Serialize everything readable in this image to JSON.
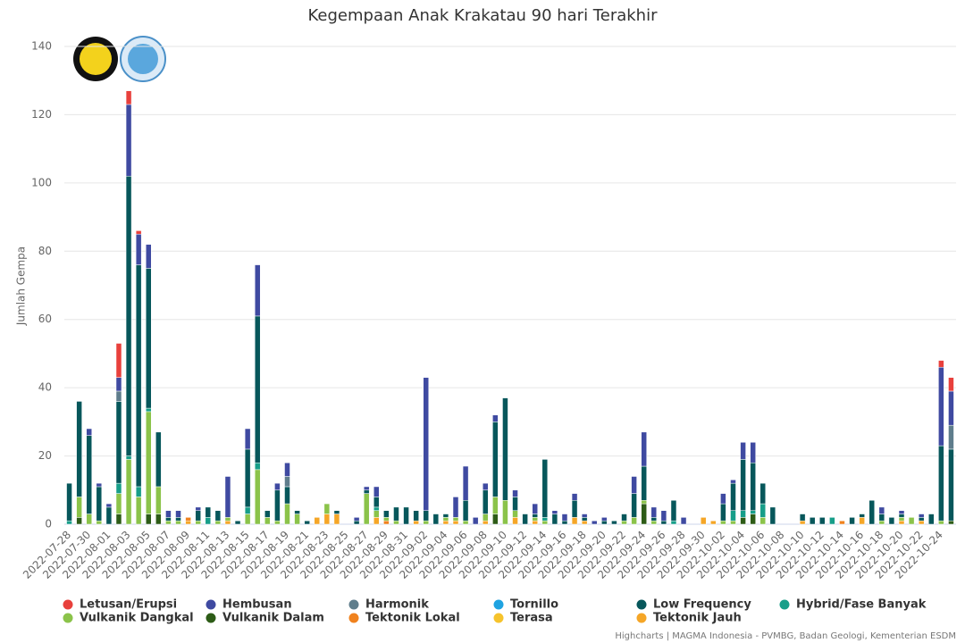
{
  "chart_data": {
    "type": "stacked-bar",
    "title": "Kegempaan Anak Krakatau 90 hari Terakhir",
    "y_label": "Jumlah Gempa",
    "credits": "Highcharts | MAGMA Indonesia - PVMBG, Badan Geologi, Kementerian ESDM",
    "ylim": [
      0,
      140
    ],
    "yticks": [
      0,
      20,
      40,
      60,
      80,
      100,
      120,
      140
    ],
    "grid": true,
    "legend": "bottom",
    "categories": [
      "2022-07-28",
      null,
      "2022-07-30",
      null,
      "2022-08-01",
      null,
      "2022-08-03",
      null,
      "2022-08-05",
      null,
      "2022-08-07",
      null,
      "2022-08-09",
      null,
      "2022-08-11",
      null,
      "2022-08-13",
      null,
      "2022-08-15",
      null,
      "2022-08-17",
      null,
      "2022-08-19",
      null,
      "2022-08-21",
      null,
      "2022-08-23",
      null,
      "2022-08-25",
      null,
      "2022-08-27",
      null,
      "2022-08-29",
      null,
      "2022-08-31",
      null,
      "2022-09-02",
      null,
      "2022-09-04",
      null,
      "2022-09-06",
      null,
      "2022-09-08",
      null,
      "2022-09-10",
      null,
      "2022-09-12",
      null,
      "2022-09-14",
      null,
      "2022-09-16",
      null,
      "2022-09-18",
      null,
      "2022-09-20",
      null,
      "2022-09-22",
      null,
      "2022-09-24",
      null,
      "2022-09-26",
      null,
      "2022-09-28",
      null,
      "2022-09-30",
      null,
      "2022-10-02",
      null,
      "2022-10-04",
      null,
      "2022-10-06",
      null,
      "2022-10-08",
      null,
      "2022-10-10",
      null,
      "2022-10-12",
      null,
      "2022-10-14",
      null,
      "2022-10-16",
      null,
      "2022-10-18",
      null,
      "2022-10-20",
      null,
      "2022-10-22",
      null,
      "2022-10-24",
      null
    ],
    "series": [
      {
        "name": "Letusan/Erupsi",
        "color": "#e8403c",
        "values": [
          0,
          0,
          0,
          0,
          0,
          10,
          4,
          1,
          0,
          0,
          0,
          0,
          0,
          0,
          0,
          0,
          0,
          0,
          0,
          0,
          0,
          0,
          0,
          0,
          0,
          0,
          0,
          0,
          0,
          0,
          0,
          0,
          0,
          0,
          0,
          0,
          0,
          0,
          0,
          0,
          0,
          0,
          0,
          0,
          0,
          0,
          0,
          0,
          0,
          0,
          0,
          0,
          0,
          0,
          0,
          0,
          0,
          0,
          0,
          0,
          0,
          0,
          0,
          0,
          0,
          0,
          0,
          0,
          0,
          0,
          0,
          0,
          0,
          0,
          0,
          0,
          0,
          0,
          0,
          0,
          0,
          0,
          0,
          0,
          0,
          0,
          0,
          0,
          2,
          4
        ]
      },
      {
        "name": "Hembusan",
        "color": "#3f4aa1",
        "values": [
          0,
          0,
          2,
          1,
          1,
          4,
          21,
          9,
          7,
          0,
          2,
          2,
          0,
          1,
          0,
          0,
          12,
          0,
          6,
          15,
          0,
          2,
          4,
          0,
          0,
          0,
          0,
          0,
          0,
          1,
          1,
          3,
          0,
          0,
          0,
          0,
          39,
          0,
          0,
          6,
          10,
          2,
          2,
          2,
          0,
          2,
          0,
          3,
          0,
          1,
          2,
          2,
          1,
          1,
          1,
          0,
          0,
          5,
          10,
          3,
          3,
          0,
          2,
          0,
          0,
          0,
          3,
          1,
          5,
          6,
          0,
          0,
          0,
          0,
          0,
          0,
          0,
          0,
          0,
          0,
          0,
          0,
          2,
          0,
          1,
          0,
          1,
          0,
          23,
          10
        ]
      },
      {
        "name": "Harmonik",
        "color": "#5f7d8c",
        "values": [
          0,
          0,
          0,
          0,
          0,
          3,
          0,
          0,
          0,
          0,
          0,
          0,
          0,
          0,
          0,
          0,
          0,
          0,
          0,
          0,
          0,
          0,
          3,
          0,
          0,
          0,
          0,
          0,
          0,
          0,
          0,
          0,
          0,
          0,
          0,
          0,
          0,
          0,
          0,
          0,
          0,
          0,
          0,
          0,
          0,
          0,
          0,
          0,
          0,
          0,
          0,
          0,
          0,
          0,
          0,
          0,
          0,
          0,
          0,
          0,
          0,
          0,
          0,
          0,
          0,
          0,
          0,
          0,
          0,
          0,
          0,
          0,
          0,
          0,
          0,
          0,
          0,
          0,
          0,
          0,
          0,
          0,
          0,
          0,
          0,
          0,
          0,
          0,
          0,
          7
        ]
      },
      {
        "name": "Tornillo",
        "color": "#1fa3e1",
        "values": [
          0,
          0,
          0,
          0,
          0,
          0,
          0,
          0,
          0,
          0,
          0,
          0,
          0,
          0,
          0,
          0,
          0,
          0,
          0,
          0,
          0,
          0,
          0,
          0,
          0,
          0,
          0,
          0,
          0,
          0,
          0,
          0,
          0,
          0,
          0,
          0,
          0,
          0,
          0,
          0,
          0,
          0,
          0,
          0,
          0,
          0,
          0,
          0,
          0,
          0,
          0,
          0,
          0,
          0,
          0,
          0,
          0,
          0,
          0,
          0,
          0,
          0,
          0,
          0,
          0,
          0,
          0,
          0,
          0,
          0,
          0,
          0,
          0,
          0,
          0,
          0,
          0,
          0,
          0,
          0,
          0,
          0,
          0,
          0,
          0,
          0,
          0,
          0,
          0,
          0
        ]
      },
      {
        "name": "Low Frequency",
        "color": "#07575b",
        "values": [
          11,
          28,
          23,
          10,
          5,
          24,
          82,
          65,
          41,
          16,
          1,
          1,
          0,
          3,
          3,
          3,
          0,
          1,
          17,
          43,
          2,
          9,
          5,
          1,
          1,
          0,
          0,
          1,
          0,
          1,
          1,
          3,
          2,
          4,
          5,
          3,
          3,
          3,
          1,
          0,
          6,
          0,
          7,
          22,
          30,
          4,
          3,
          1,
          17,
          3,
          1,
          5,
          1,
          0,
          1,
          1,
          2,
          7,
          10,
          1,
          1,
          6,
          0,
          0,
          0,
          0,
          5,
          8,
          15,
          14,
          6,
          5,
          0,
          0,
          2,
          2,
          2,
          0,
          0,
          2,
          1,
          7,
          2,
          2,
          1,
          0,
          1,
          3,
          22,
          21
        ]
      },
      {
        "name": "Hybrid/Fase Banyak",
        "color": "#179e89",
        "values": [
          1,
          0,
          0,
          0,
          0,
          3,
          1,
          3,
          1,
          0,
          0,
          0,
          0,
          0,
          2,
          0,
          0,
          0,
          2,
          2,
          0,
          0,
          0,
          0,
          0,
          0,
          0,
          0,
          0,
          0,
          0,
          1,
          0,
          0,
          0,
          0,
          0,
          0,
          0,
          0,
          0,
          0,
          0,
          0,
          0,
          0,
          0,
          0,
          1,
          0,
          0,
          0,
          0,
          0,
          0,
          0,
          0,
          0,
          0,
          0,
          0,
          1,
          0,
          0,
          0,
          0,
          0,
          3,
          2,
          1,
          4,
          0,
          0,
          0,
          0,
          0,
          0,
          2,
          0,
          0,
          0,
          0,
          0,
          0,
          0,
          0,
          0,
          0,
          0,
          0
        ]
      },
      {
        "name": "Vulkanik Dangkal",
        "color": "#8bc34a",
        "values": [
          0,
          6,
          3,
          1,
          0,
          6,
          19,
          8,
          30,
          8,
          1,
          1,
          0,
          1,
          0,
          1,
          1,
          0,
          3,
          16,
          2,
          1,
          6,
          3,
          0,
          0,
          3,
          0,
          0,
          0,
          9,
          2,
          1,
          1,
          0,
          0,
          1,
          0,
          1,
          1,
          1,
          0,
          2,
          5,
          7,
          2,
          0,
          1,
          1,
          0,
          0,
          0,
          0,
          0,
          0,
          0,
          1,
          2,
          1,
          1,
          0,
          0,
          0,
          0,
          0,
          0,
          1,
          1,
          0,
          0,
          2,
          0,
          0,
          0,
          0,
          0,
          0,
          0,
          0,
          0,
          0,
          0,
          1,
          0,
          1,
          2,
          0,
          0,
          1,
          0
        ]
      },
      {
        "name": "Vulkanik Dalam",
        "color": "#2d5c17",
        "values": [
          0,
          2,
          0,
          0,
          0,
          3,
          0,
          0,
          3,
          3,
          0,
          0,
          0,
          0,
          0,
          0,
          0,
          0,
          0,
          0,
          0,
          0,
          0,
          0,
          0,
          0,
          0,
          0,
          0,
          0,
          0,
          0,
          0,
          0,
          0,
          0,
          0,
          0,
          0,
          0,
          0,
          0,
          0,
          3,
          0,
          0,
          0,
          0,
          0,
          0,
          0,
          0,
          0,
          0,
          0,
          0,
          0,
          0,
          6,
          0,
          0,
          0,
          0,
          0,
          0,
          0,
          0,
          0,
          2,
          3,
          0,
          0,
          0,
          0,
          0,
          0,
          0,
          0,
          0,
          0,
          0,
          0,
          0,
          0,
          0,
          0,
          0,
          0,
          0,
          1
        ]
      },
      {
        "name": "Tektonik Lokal",
        "color": "#f0821e",
        "values": [
          0,
          0,
          0,
          0,
          0,
          0,
          0,
          0,
          0,
          0,
          0,
          0,
          1,
          0,
          0,
          0,
          0,
          0,
          0,
          0,
          0,
          0,
          0,
          0,
          0,
          0,
          0,
          0,
          0,
          0,
          0,
          0,
          1,
          0,
          0,
          0,
          0,
          0,
          0,
          0,
          0,
          0,
          0,
          0,
          0,
          0,
          0,
          0,
          0,
          0,
          0,
          0,
          0,
          0,
          0,
          0,
          0,
          0,
          0,
          0,
          0,
          0,
          0,
          0,
          0,
          0,
          0,
          0,
          0,
          0,
          0,
          0,
          0,
          0,
          0,
          0,
          0,
          0,
          1,
          0,
          0,
          0,
          0,
          0,
          0,
          0,
          0,
          0,
          0,
          0
        ]
      },
      {
        "name": "Terasa",
        "color": "#f6c32c",
        "values": [
          0,
          0,
          0,
          0,
          0,
          0,
          0,
          0,
          0,
          0,
          0,
          0,
          0,
          0,
          0,
          0,
          0,
          0,
          0,
          0,
          0,
          0,
          0,
          0,
          0,
          0,
          0,
          0,
          0,
          0,
          0,
          0,
          0,
          0,
          0,
          0,
          0,
          0,
          0,
          0,
          0,
          0,
          0,
          0,
          0,
          0,
          0,
          0,
          0,
          0,
          0,
          0,
          0,
          0,
          0,
          0,
          0,
          0,
          0,
          0,
          0,
          0,
          0,
          0,
          0,
          0,
          0,
          0,
          0,
          0,
          0,
          0,
          0,
          0,
          0,
          0,
          0,
          0,
          0,
          0,
          0,
          0,
          0,
          0,
          0,
          0,
          0,
          0,
          0,
          0
        ]
      },
      {
        "name": "Tektonik Jauh",
        "color": "#f5a627",
        "values": [
          0,
          0,
          0,
          0,
          0,
          0,
          0,
          0,
          0,
          0,
          0,
          0,
          1,
          0,
          0,
          0,
          1,
          0,
          0,
          0,
          0,
          0,
          0,
          0,
          0,
          2,
          3,
          3,
          0,
          0,
          0,
          2,
          0,
          0,
          0,
          1,
          0,
          0,
          1,
          1,
          0,
          0,
          1,
          0,
          0,
          2,
          0,
          1,
          0,
          0,
          0,
          2,
          1,
          0,
          0,
          0,
          0,
          0,
          0,
          0,
          0,
          0,
          0,
          0,
          2,
          1,
          0,
          0,
          0,
          0,
          0,
          0,
          0,
          0,
          1,
          0,
          0,
          0,
          0,
          0,
          2,
          0,
          0,
          0,
          1,
          0,
          1,
          0,
          0,
          0
        ]
      }
    ]
  }
}
